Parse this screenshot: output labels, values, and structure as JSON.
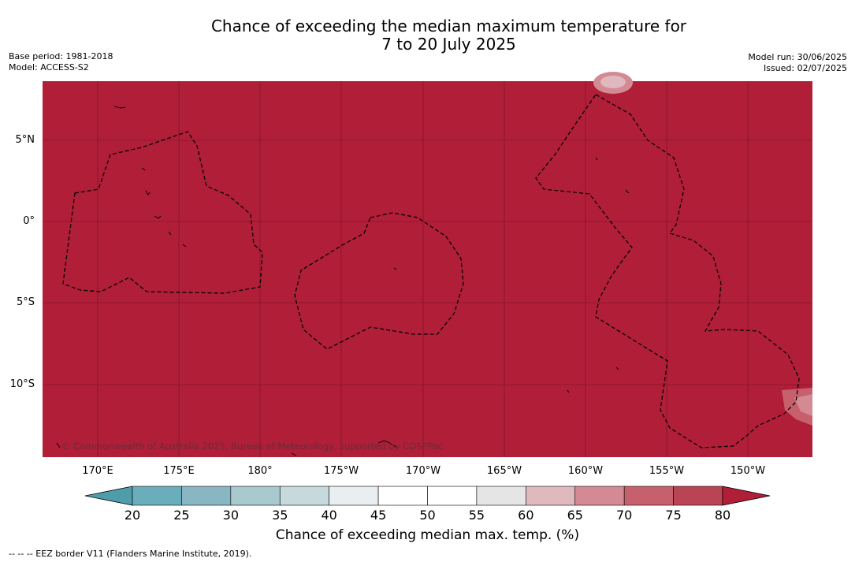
{
  "title_line1": "Chance of exceeding the median maximum temperature for",
  "title_line2": "7 to 20 July 2025",
  "base_period": "Base period: 1981-2018",
  "model": "Model: ACCESS-S2",
  "model_run": "Model run: 30/06/2025",
  "issued": "Issued: 02/07/2025",
  "copyright": "© Commonwealth of Australia 2025, Bureau of Meteorology, supported by COSPPac",
  "lon_ticks": [
    "170°E",
    "175°E",
    "180°",
    "175°W",
    "170°W",
    "165°W",
    "160°W",
    "155°W",
    "150°W"
  ],
  "lat_ticks": [
    "5°N",
    "0°",
    "5°S",
    "10°S"
  ],
  "colorbar": {
    "ticks": [
      "20",
      "25",
      "30",
      "35",
      "40",
      "45",
      "50",
      "55",
      "60",
      "65",
      "70",
      "75",
      "80"
    ],
    "colors": [
      "#6aadbb",
      "#88b7c3",
      "#a8c9ce",
      "#c6dadd",
      "#e9eff1",
      "#ffffff",
      "#ffffff",
      "#e5e5e5",
      "#e0b9bf",
      "#d48a93",
      "#c6606d",
      "#b94453"
    ],
    "under_color": "#4f9dab",
    "over_color": "#b11e38",
    "label": "Chance of exceeding median max. temp. (%)"
  },
  "map_fill": "#b11e38",
  "footer": "-- -- -- EEZ border V11 (Flanders Marine Institute, 2019)."
}
